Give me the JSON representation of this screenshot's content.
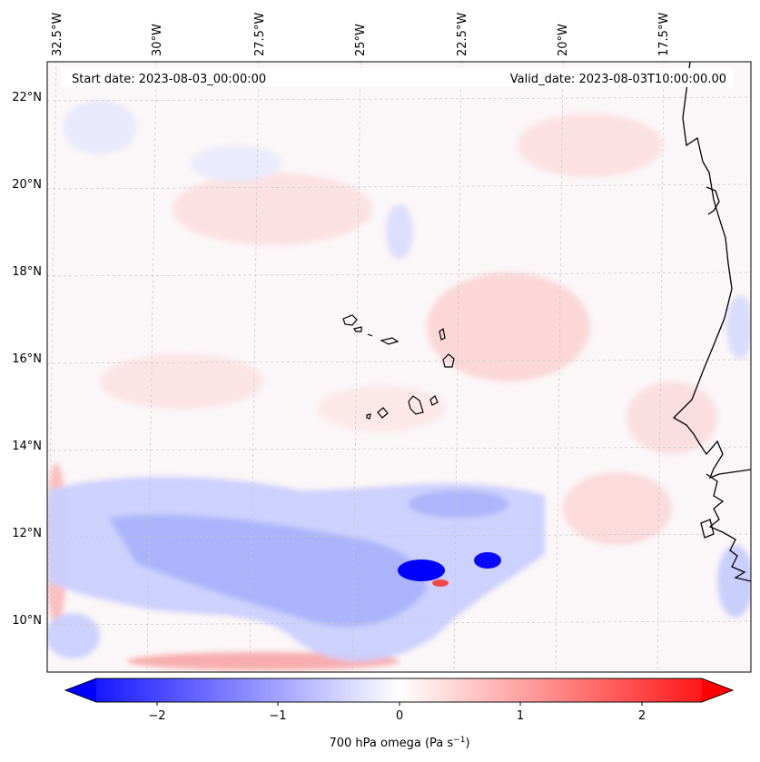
{
  "map": {
    "start_date_text": "Start date: 2023-08-03_00:00:00",
    "valid_date_text": "Valid_date: 2023-08-03T10:00:00.00",
    "lat_labels": [
      "22°N",
      "20°N",
      "18°N",
      "16°N",
      "14°N",
      "12°N",
      "10°N"
    ],
    "lon_labels": [
      "32.5°W",
      "30°W",
      "27.5°W",
      "25°W",
      "22.5°W",
      "20°W",
      "17.5°W"
    ],
    "colorbar": {
      "label": "700 hPa omega (Pa s",
      "label_sup": "−1",
      "label_end": ")",
      "ticks": [
        "−2",
        "−1",
        "0",
        "1",
        "2"
      ],
      "min": -2.5,
      "max": 2.5,
      "colors": {
        "neg": "#0000ff",
        "zero": "#ffffff",
        "pos": "#ff0000"
      }
    },
    "colors": {
      "coast": "#000000",
      "grid": "#c8c8c8"
    }
  }
}
